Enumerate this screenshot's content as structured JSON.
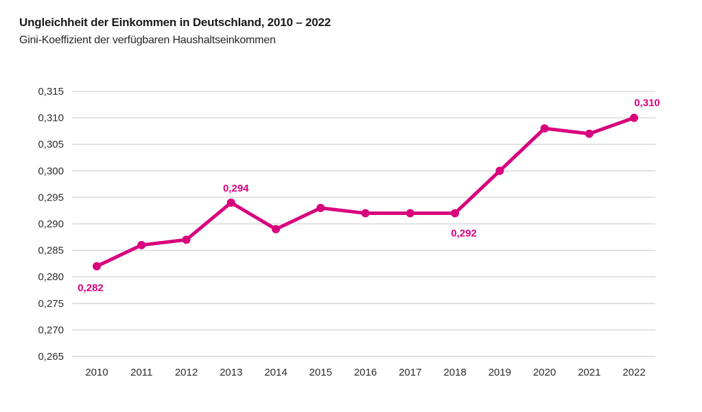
{
  "header": {
    "title": "Ungleichheit der Einkommen in Deutschland, 2010 – 2022",
    "subtitle": "Gini-Koeffizient der verfügbaren Haushaltseinkommen"
  },
  "chart_data": {
    "type": "line",
    "title": "Ungleichheit der Einkommen in Deutschland, 2010 – 2022",
    "subtitle": "Gini-Koeffizient der verfügbaren Haushaltseinkommen",
    "categories": [
      "2010",
      "2011",
      "2012",
      "2013",
      "2014",
      "2015",
      "2016",
      "2017",
      "2018",
      "2019",
      "2020",
      "2021",
      "2022"
    ],
    "values": [
      0.282,
      0.286,
      0.287,
      0.294,
      0.289,
      0.293,
      0.292,
      0.292,
      0.292,
      0.3,
      0.308,
      0.307,
      0.31
    ],
    "xlabel": "",
    "ylabel": "",
    "ylim": [
      0.265,
      0.315
    ],
    "y_tick_step": 0.005,
    "y_ticks": [
      {
        "value": 0.315,
        "label": "0,315"
      },
      {
        "value": 0.31,
        "label": "0,310"
      },
      {
        "value": 0.305,
        "label": "0,305"
      },
      {
        "value": 0.3,
        "label": "0,300"
      },
      {
        "value": 0.295,
        "label": "0,295"
      },
      {
        "value": 0.29,
        "label": "0,290"
      },
      {
        "value": 0.285,
        "label": "0,285"
      },
      {
        "value": 0.28,
        "label": "0,280"
      },
      {
        "value": 0.275,
        "label": "0,275"
      },
      {
        "value": 0.27,
        "label": "0,270"
      },
      {
        "value": 0.265,
        "label": "0,265"
      }
    ],
    "grid": "horizontal",
    "legend": "none",
    "line_color": "#D8007D",
    "grid_color": "#DADADA",
    "tick_text_color": "#2b2b2b",
    "annotations": [
      {
        "category": "2010",
        "label": "0,282",
        "placement": "below-left"
      },
      {
        "category": "2013",
        "label": "0,294",
        "placement": "above"
      },
      {
        "category": "2018",
        "label": "0,292",
        "placement": "below"
      },
      {
        "category": "2022",
        "label": "0,310",
        "placement": "above-right"
      }
    ]
  }
}
